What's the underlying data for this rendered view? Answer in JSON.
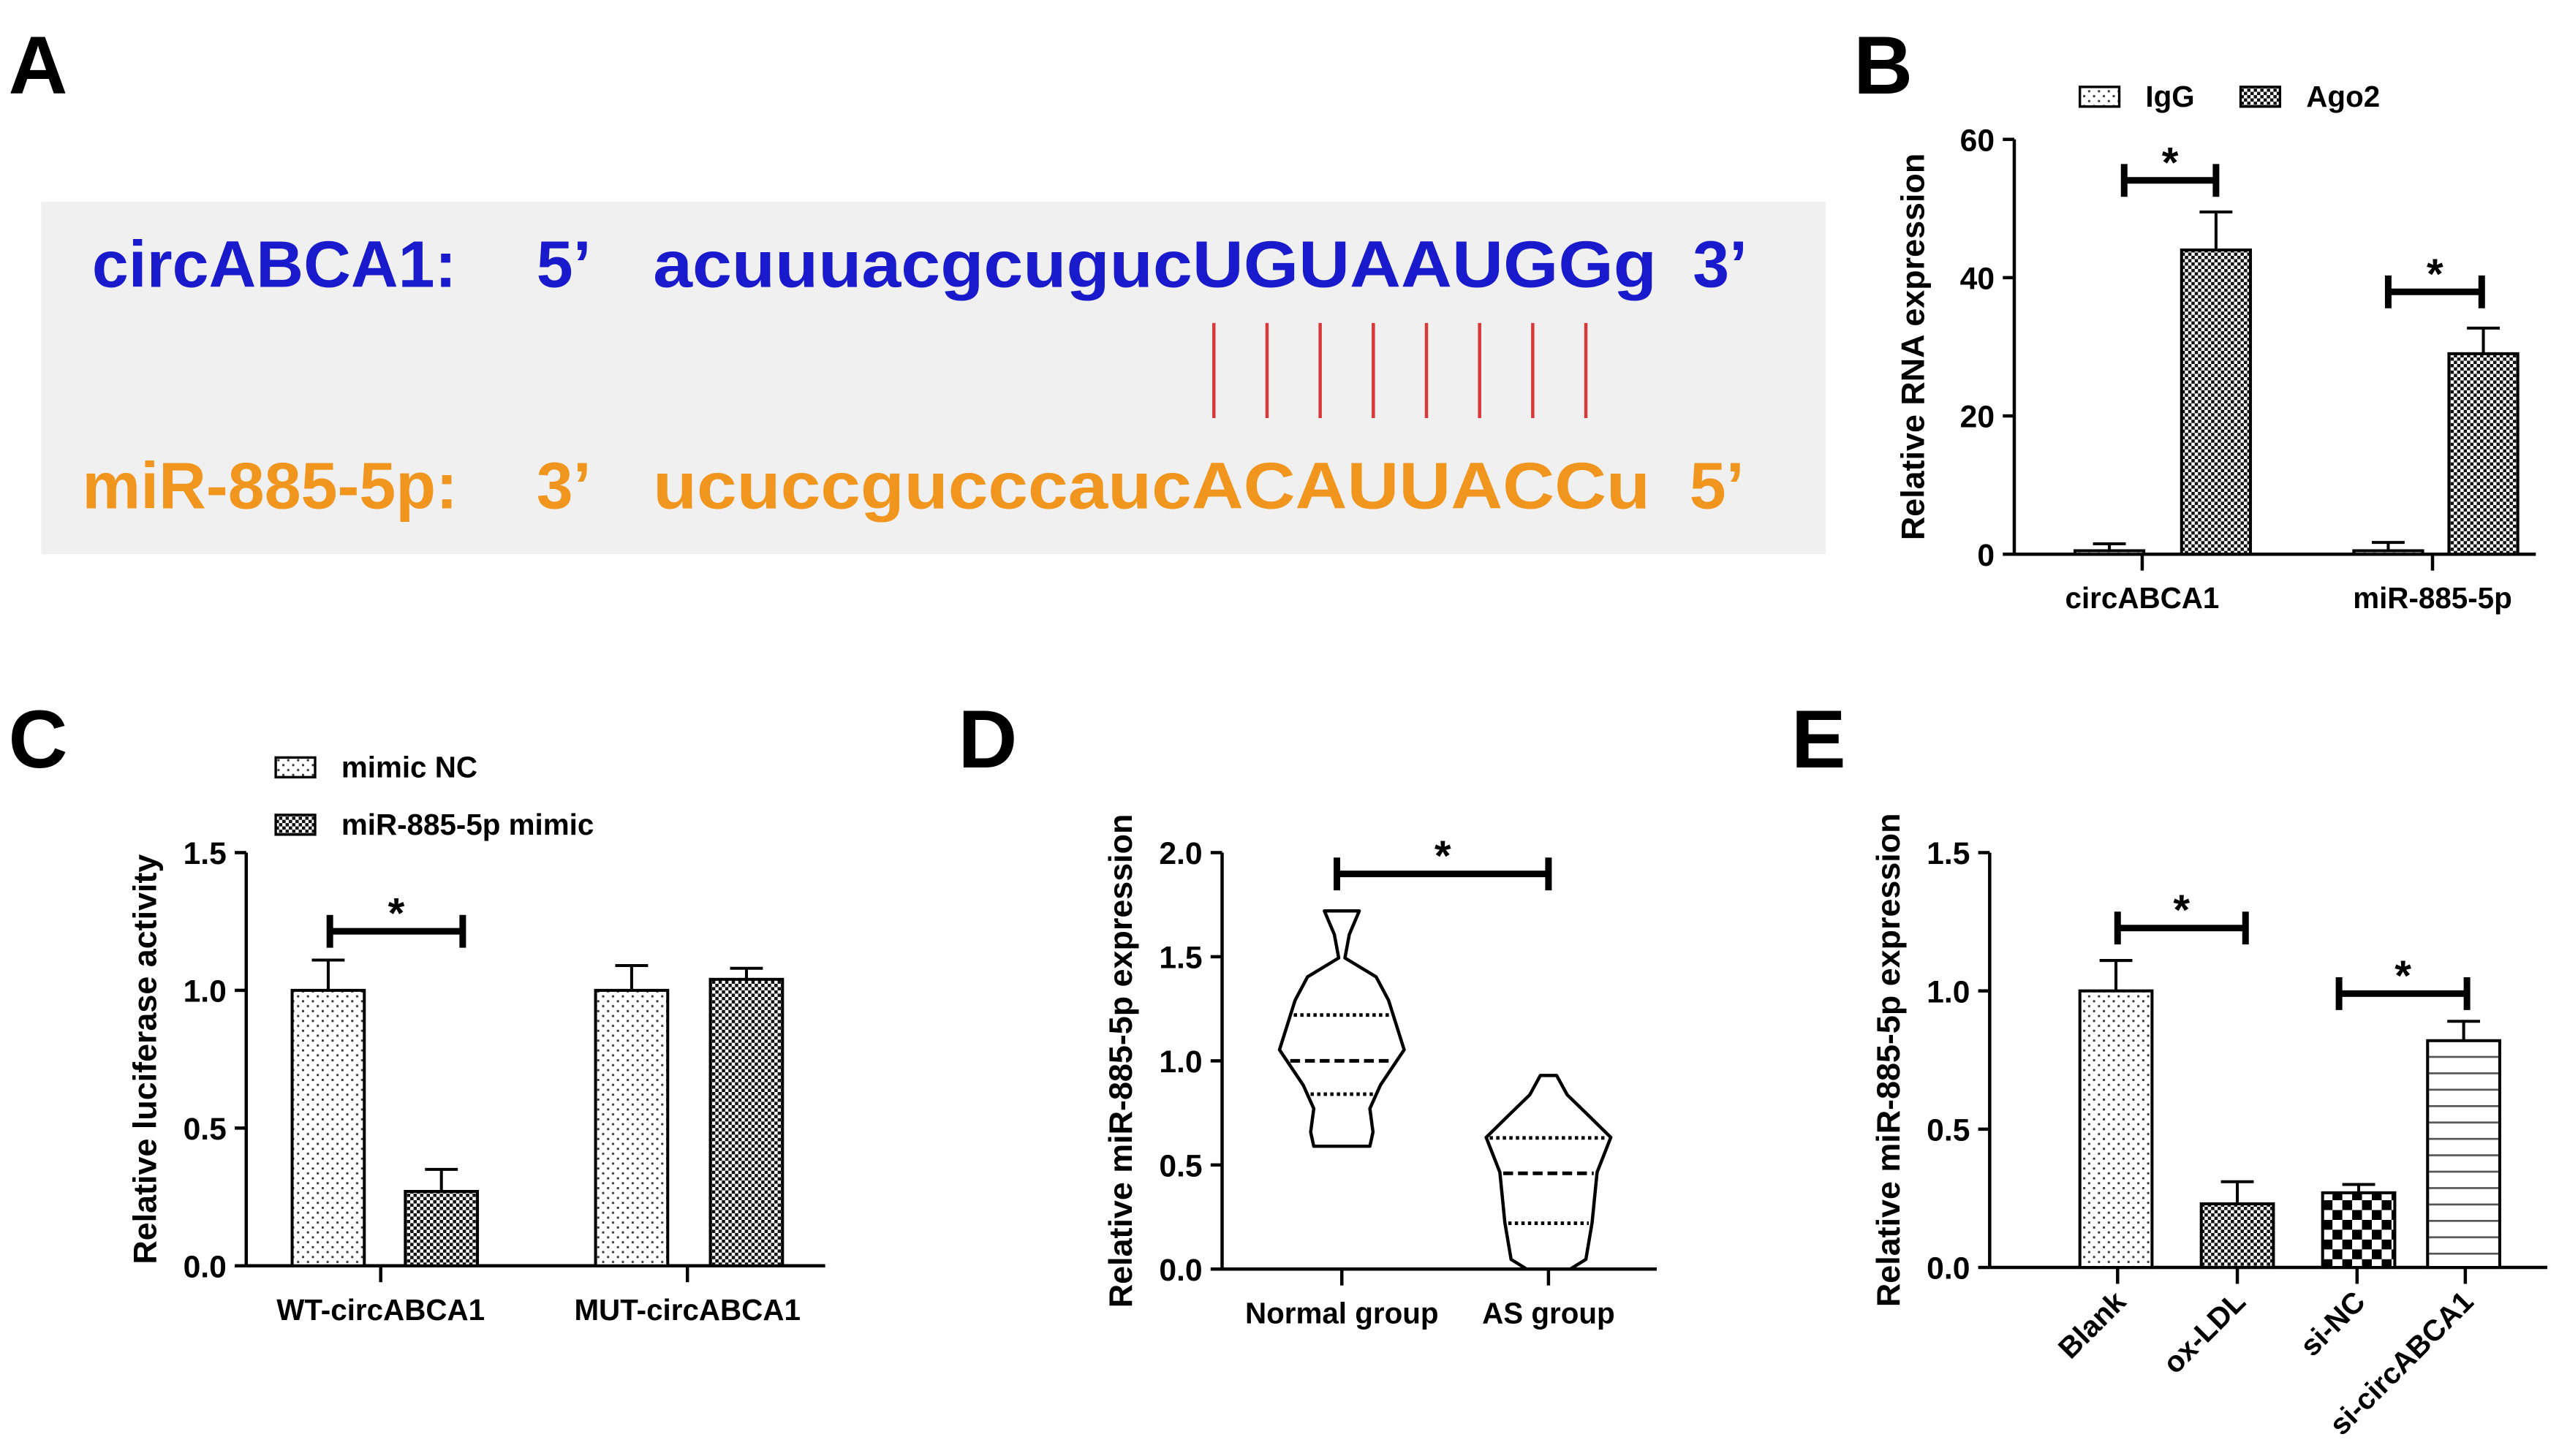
{
  "panels": {
    "A": {
      "label": "A",
      "line1": {
        "name": "circABCA1:",
        "prime_left": "5’",
        "sequence": "acuuuacgcugucUGUAAUGGg",
        "prime_right": "3’",
        "color": "#1a1acd"
      },
      "line2": {
        "name": "miR-885-5p:",
        "prime_left": "3’",
        "sequence": "ucuccgucccaucACAUUACCu",
        "prime_right": "5’",
        "color": "#f0961e"
      },
      "pairing_line_color": "#d9383a",
      "pair_count": 8,
      "box_color": "#f0f0f0"
    },
    "B": {
      "label": "B"
    },
    "C": {
      "label": "C"
    },
    "D": {
      "label": "D"
    },
    "E": {
      "label": "E"
    }
  },
  "chart_data": [
    {
      "panel": "B",
      "type": "bar",
      "ylabel": "Relative RNA expression",
      "ylim": [
        0,
        60
      ],
      "yticks": [
        "0",
        "20",
        "40",
        "60"
      ],
      "categories": [
        "circABCA1",
        "miR-885-5p"
      ],
      "legend": {
        "placement": "top",
        "entries": [
          "IgG",
          "Ago2"
        ]
      },
      "series": [
        {
          "name": "IgG",
          "pattern": "fine-dots",
          "values": [
            0.5,
            0.5
          ],
          "errors": [
            1.0,
            1.2
          ]
        },
        {
          "name": "Ago2",
          "pattern": "checker-fine",
          "values": [
            44,
            29
          ],
          "errors": [
            5.5,
            3.7
          ]
        }
      ],
      "significance": [
        {
          "category": "circABCA1",
          "mark": "*"
        },
        {
          "category": "miR-885-5p",
          "mark": "*"
        }
      ]
    },
    {
      "panel": "C",
      "type": "bar",
      "ylabel": "Relative luciferase activity",
      "ylim": [
        0,
        1.5
      ],
      "yticks": [
        "0.0",
        "0.5",
        "1.0",
        "1.5"
      ],
      "categories": [
        "WT-circABCA1",
        "MUT-circABCA1"
      ],
      "legend": {
        "placement": "top-left",
        "entries": [
          "mimic NC",
          "miR-885-5p mimic"
        ]
      },
      "series": [
        {
          "name": "mimic NC",
          "pattern": "fine-dots",
          "values": [
            1.0,
            1.0
          ],
          "errors": [
            0.11,
            0.09
          ]
        },
        {
          "name": "miR-885-5p mimic",
          "pattern": "checker-fine",
          "values": [
            0.27,
            1.04
          ],
          "errors": [
            0.08,
            0.04
          ]
        }
      ],
      "significance": [
        {
          "category": "WT-circABCA1",
          "mark": "*"
        }
      ]
    },
    {
      "panel": "D",
      "type": "violin",
      "ylabel": "Relative miR-885-5p expression",
      "ylim": [
        0,
        2.0
      ],
      "yticks": [
        "0.0",
        "0.5",
        "1.0",
        "1.5",
        "2.0"
      ],
      "categories": [
        "Normal group",
        "AS group"
      ],
      "groups": [
        {
          "name": "Normal group",
          "min": 0.59,
          "q1": 0.84,
          "median": 1.0,
          "q3": 1.22,
          "max": 1.72
        },
        {
          "name": "AS group",
          "min": 0.0,
          "q1": 0.22,
          "median": 0.46,
          "q3": 0.63,
          "max": 0.93
        }
      ],
      "significance": [
        {
          "between": [
            "Normal group",
            "AS group"
          ],
          "mark": "*"
        }
      ]
    },
    {
      "panel": "E",
      "type": "bar",
      "ylabel": "Relative miR-885-5p expression",
      "ylim": [
        0,
        1.5
      ],
      "yticks": [
        "0.0",
        "0.5",
        "1.0",
        "1.5"
      ],
      "categories": [
        "Blank",
        "ox-LDL",
        "si-NC",
        "si-circABCA1"
      ],
      "series": [
        {
          "patterns": [
            "fine-dots",
            "checker-fine",
            "checker-coarse",
            "horizontal-lines"
          ],
          "values": [
            1.0,
            0.23,
            0.27,
            0.82
          ],
          "errors": [
            0.11,
            0.08,
            0.03,
            0.07
          ]
        }
      ],
      "significance": [
        {
          "between": [
            "Blank",
            "ox-LDL"
          ],
          "mark": "*"
        },
        {
          "between": [
            "si-NC",
            "si-circABCA1"
          ],
          "mark": "*"
        }
      ]
    }
  ]
}
